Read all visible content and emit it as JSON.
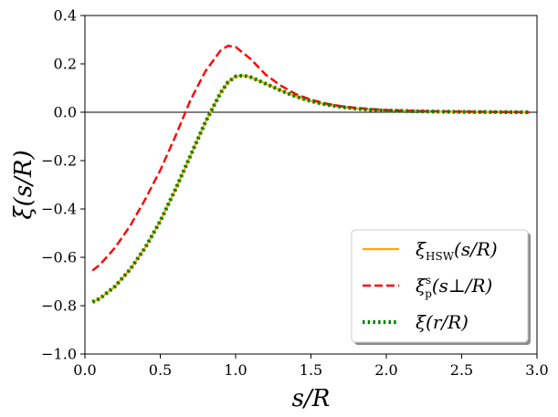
{
  "chart_data": {
    "type": "line",
    "xlabel": "s/R",
    "ylabel": "ξ(s/R)",
    "xlim": [
      0.0,
      3.0
    ],
    "ylim": [
      -1.0,
      0.4
    ],
    "xticks": [
      "0.0",
      "0.5",
      "1.0",
      "1.5",
      "2.0",
      "2.5",
      "3.0"
    ],
    "yticks": [
      "0.4",
      "0.2",
      "0.0",
      "−0.2",
      "−0.4",
      "−0.6",
      "−0.8",
      "−1.0"
    ],
    "xtick_values": [
      0.0,
      0.5,
      1.0,
      1.5,
      2.0,
      2.5,
      3.0
    ],
    "ytick_values": [
      0.4,
      0.2,
      0.0,
      -0.2,
      -0.4,
      -0.6,
      -0.8,
      -1.0
    ],
    "reference_line": {
      "y": 0.0,
      "color": "#000000"
    },
    "legend_position": "lower-right",
    "series": [
      {
        "name": "xi-hsw",
        "label_main": "ξ",
        "label_sub": "HSW",
        "label_rest": "(s/R)",
        "color": "#FFA500",
        "style": "solid",
        "x": [
          0.05,
          0.1,
          0.2,
          0.3,
          0.4,
          0.5,
          0.6,
          0.7,
          0.8,
          0.9,
          0.95,
          1.0,
          1.05,
          1.1,
          1.2,
          1.3,
          1.4,
          1.5,
          1.6,
          1.7,
          1.8,
          1.9,
          2.0,
          2.2,
          2.4,
          2.6,
          2.8,
          2.95
        ],
        "y": [
          -0.785,
          -0.77,
          -0.72,
          -0.65,
          -0.56,
          -0.45,
          -0.32,
          -0.18,
          -0.04,
          0.08,
          0.125,
          0.148,
          0.152,
          0.145,
          0.118,
          0.09,
          0.065,
          0.046,
          0.032,
          0.022,
          0.015,
          0.01,
          0.007,
          0.004,
          0.002,
          0.001,
          0.0005,
          0.0
        ]
      },
      {
        "name": "xi-p-s",
        "label_main": "ξ",
        "label_sup": "s",
        "label_sub": "p",
        "label_rest": "(s⊥/R)",
        "color": "#FF0000",
        "style": "dashed",
        "x": [
          0.05,
          0.1,
          0.2,
          0.3,
          0.4,
          0.5,
          0.6,
          0.7,
          0.8,
          0.9,
          0.95,
          1.0,
          1.1,
          1.2,
          1.3,
          1.4,
          1.5,
          1.6,
          1.7,
          1.8,
          1.9,
          2.0,
          2.2,
          2.4,
          2.6,
          2.8,
          2.95
        ],
        "y": [
          -0.655,
          -0.63,
          -0.56,
          -0.47,
          -0.36,
          -0.24,
          -0.1,
          0.05,
          0.17,
          0.255,
          0.275,
          0.27,
          0.22,
          0.155,
          0.11,
          0.075,
          0.052,
          0.036,
          0.025,
          0.018,
          0.013,
          0.009,
          0.005,
          0.003,
          0.002,
          0.001,
          0.0
        ]
      },
      {
        "name": "xi-r",
        "label_main": "ξ",
        "label_rest": "(r/R)",
        "color": "#008000",
        "style": "dotted",
        "x": [
          0.05,
          0.1,
          0.2,
          0.3,
          0.4,
          0.5,
          0.6,
          0.7,
          0.8,
          0.9,
          0.95,
          1.0,
          1.05,
          1.1,
          1.2,
          1.3,
          1.4,
          1.5,
          1.6,
          1.7,
          1.8,
          1.9,
          2.0,
          2.2,
          2.4,
          2.6,
          2.8,
          2.95
        ],
        "y": [
          -0.785,
          -0.77,
          -0.72,
          -0.65,
          -0.56,
          -0.45,
          -0.32,
          -0.18,
          -0.04,
          0.08,
          0.125,
          0.148,
          0.152,
          0.145,
          0.118,
          0.09,
          0.065,
          0.046,
          0.032,
          0.022,
          0.015,
          0.01,
          0.007,
          0.004,
          0.002,
          0.001,
          0.0005,
          0.0
        ]
      }
    ]
  }
}
